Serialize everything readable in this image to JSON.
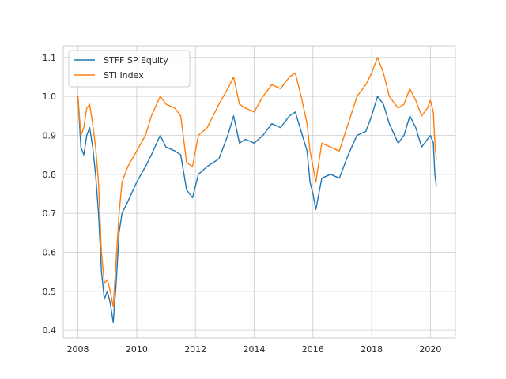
{
  "chart_data": {
    "type": "line",
    "title": "",
    "xlabel": "",
    "ylabel": "",
    "xlim": [
      2007.5,
      2020.85
    ],
    "ylim": [
      0.38,
      1.13
    ],
    "xticks": [
      2008,
      2010,
      2012,
      2014,
      2016,
      2018,
      2020
    ],
    "xtick_labels": [
      "2008",
      "2010",
      "2012",
      "2014",
      "2016",
      "2018",
      "2020"
    ],
    "yticks": [
      0.4,
      0.5,
      0.6,
      0.7,
      0.8,
      0.9,
      1.0,
      1.1
    ],
    "ytick_labels": [
      "0.4",
      "0.5",
      "0.6",
      "0.7",
      "0.8",
      "0.9",
      "1.0",
      "1.1"
    ],
    "grid": true,
    "legend_position": "top-left",
    "series": [
      {
        "name": "STFF SP Equity",
        "color": "#1f77b4",
        "points": [
          [
            2008.0,
            1.0
          ],
          [
            2008.1,
            0.87
          ],
          [
            2008.2,
            0.85
          ],
          [
            2008.3,
            0.9
          ],
          [
            2008.4,
            0.92
          ],
          [
            2008.5,
            0.87
          ],
          [
            2008.6,
            0.8
          ],
          [
            2008.7,
            0.7
          ],
          [
            2008.8,
            0.55
          ],
          [
            2008.9,
            0.48
          ],
          [
            2009.0,
            0.5
          ],
          [
            2009.1,
            0.47
          ],
          [
            2009.2,
            0.42
          ],
          [
            2009.3,
            0.52
          ],
          [
            2009.4,
            0.65
          ],
          [
            2009.5,
            0.7
          ],
          [
            2009.7,
            0.73
          ],
          [
            2010.0,
            0.78
          ],
          [
            2010.3,
            0.82
          ],
          [
            2010.5,
            0.85
          ],
          [
            2010.8,
            0.9
          ],
          [
            2011.0,
            0.87
          ],
          [
            2011.3,
            0.86
          ],
          [
            2011.5,
            0.85
          ],
          [
            2011.7,
            0.76
          ],
          [
            2011.9,
            0.74
          ],
          [
            2012.1,
            0.8
          ],
          [
            2012.4,
            0.82
          ],
          [
            2012.6,
            0.83
          ],
          [
            2012.8,
            0.84
          ],
          [
            2013.1,
            0.9
          ],
          [
            2013.3,
            0.95
          ],
          [
            2013.5,
            0.88
          ],
          [
            2013.7,
            0.89
          ],
          [
            2014.0,
            0.88
          ],
          [
            2014.3,
            0.9
          ],
          [
            2014.6,
            0.93
          ],
          [
            2014.9,
            0.92
          ],
          [
            2015.2,
            0.95
          ],
          [
            2015.4,
            0.96
          ],
          [
            2015.6,
            0.91
          ],
          [
            2015.8,
            0.86
          ],
          [
            2015.9,
            0.78
          ],
          [
            2016.0,
            0.75
          ],
          [
            2016.1,
            0.71
          ],
          [
            2016.3,
            0.79
          ],
          [
            2016.6,
            0.8
          ],
          [
            2016.9,
            0.79
          ],
          [
            2017.2,
            0.85
          ],
          [
            2017.5,
            0.9
          ],
          [
            2017.8,
            0.91
          ],
          [
            2018.0,
            0.95
          ],
          [
            2018.2,
            1.0
          ],
          [
            2018.4,
            0.98
          ],
          [
            2018.6,
            0.93
          ],
          [
            2018.9,
            0.88
          ],
          [
            2019.1,
            0.9
          ],
          [
            2019.3,
            0.95
          ],
          [
            2019.5,
            0.92
          ],
          [
            2019.7,
            0.87
          ],
          [
            2019.9,
            0.89
          ],
          [
            2020.0,
            0.9
          ],
          [
            2020.1,
            0.88
          ],
          [
            2020.15,
            0.8
          ],
          [
            2020.2,
            0.77
          ]
        ]
      },
      {
        "name": "STI Index",
        "color": "#ff7f0e",
        "points": [
          [
            2008.0,
            1.0
          ],
          [
            2008.1,
            0.9
          ],
          [
            2008.2,
            0.92
          ],
          [
            2008.3,
            0.97
          ],
          [
            2008.4,
            0.98
          ],
          [
            2008.5,
            0.93
          ],
          [
            2008.6,
            0.87
          ],
          [
            2008.7,
            0.78
          ],
          [
            2008.8,
            0.6
          ],
          [
            2008.9,
            0.52
          ],
          [
            2009.0,
            0.53
          ],
          [
            2009.1,
            0.5
          ],
          [
            2009.2,
            0.46
          ],
          [
            2009.3,
            0.58
          ],
          [
            2009.4,
            0.7
          ],
          [
            2009.5,
            0.78
          ],
          [
            2009.7,
            0.82
          ],
          [
            2010.0,
            0.86
          ],
          [
            2010.3,
            0.9
          ],
          [
            2010.5,
            0.95
          ],
          [
            2010.8,
            1.0
          ],
          [
            2011.0,
            0.98
          ],
          [
            2011.3,
            0.97
          ],
          [
            2011.5,
            0.95
          ],
          [
            2011.7,
            0.83
          ],
          [
            2011.9,
            0.82
          ],
          [
            2012.1,
            0.9
          ],
          [
            2012.4,
            0.92
          ],
          [
            2012.6,
            0.95
          ],
          [
            2012.8,
            0.98
          ],
          [
            2013.1,
            1.02
          ],
          [
            2013.3,
            1.05
          ],
          [
            2013.5,
            0.98
          ],
          [
            2013.7,
            0.97
          ],
          [
            2014.0,
            0.96
          ],
          [
            2014.3,
            1.0
          ],
          [
            2014.6,
            1.03
          ],
          [
            2014.9,
            1.02
          ],
          [
            2015.2,
            1.05
          ],
          [
            2015.4,
            1.06
          ],
          [
            2015.6,
            1.0
          ],
          [
            2015.8,
            0.93
          ],
          [
            2015.9,
            0.86
          ],
          [
            2016.0,
            0.82
          ],
          [
            2016.1,
            0.78
          ],
          [
            2016.3,
            0.88
          ],
          [
            2016.6,
            0.87
          ],
          [
            2016.9,
            0.86
          ],
          [
            2017.2,
            0.93
          ],
          [
            2017.5,
            1.0
          ],
          [
            2017.8,
            1.03
          ],
          [
            2018.0,
            1.06
          ],
          [
            2018.2,
            1.1
          ],
          [
            2018.4,
            1.06
          ],
          [
            2018.6,
            1.0
          ],
          [
            2018.9,
            0.97
          ],
          [
            2019.1,
            0.98
          ],
          [
            2019.3,
            1.02
          ],
          [
            2019.5,
            0.99
          ],
          [
            2019.7,
            0.95
          ],
          [
            2019.9,
            0.97
          ],
          [
            2020.0,
            0.99
          ],
          [
            2020.1,
            0.96
          ],
          [
            2020.15,
            0.88
          ],
          [
            2020.2,
            0.84
          ]
        ]
      }
    ]
  }
}
